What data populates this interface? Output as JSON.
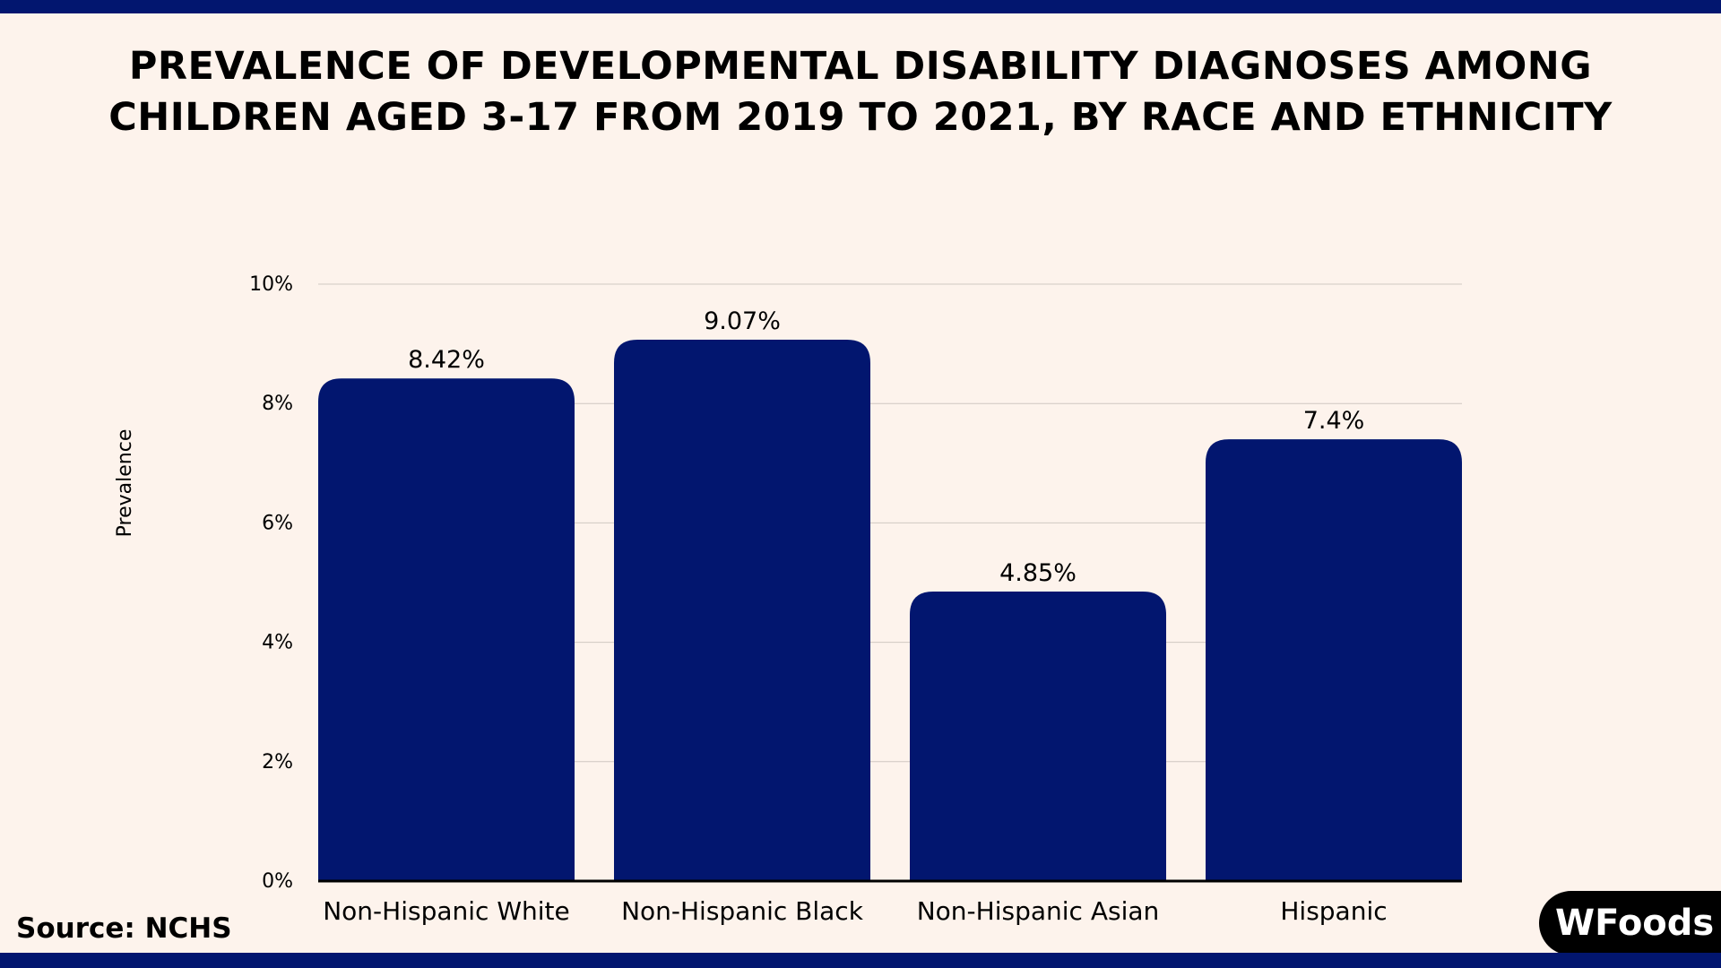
{
  "chart_data": {
    "type": "bar",
    "title": "PREVALENCE OF DEVELOPMENTAL DISABILITY DIAGNOSES AMONG CHILDREN AGED 3-17 FROM 2019 TO 2021, BY RACE AND ETHNICITY",
    "title_lines": [
      "PREVALENCE OF DEVELOPMENTAL DISABILITY DIAGNOSES AMONG",
      "CHILDREN AGED 3-17 FROM 2019 TO 2021, BY RACE AND ETHNICITY"
    ],
    "categories": [
      "Non-Hispanic White",
      "Non-Hispanic Black",
      "Non-Hispanic Asian",
      "Hispanic"
    ],
    "values": [
      8.42,
      9.07,
      4.85,
      7.4
    ],
    "data_labels": [
      "8.42%",
      "9.07%",
      "4.85%",
      "7.4%"
    ],
    "xlabel": "",
    "ylabel": "Prevalence",
    "ylim": [
      0,
      10
    ],
    "yticks": [
      0,
      2,
      4,
      6,
      8,
      10
    ],
    "ytick_labels": [
      "0%",
      "2%",
      "4%",
      "6%",
      "8%",
      "10%"
    ],
    "grid": true,
    "bar_color": "#02166f",
    "band_color": "#02166f",
    "background_color": "#fdf3ec"
  },
  "footer": {
    "source": "Source: NCHS",
    "logo_text": "WFoods"
  }
}
